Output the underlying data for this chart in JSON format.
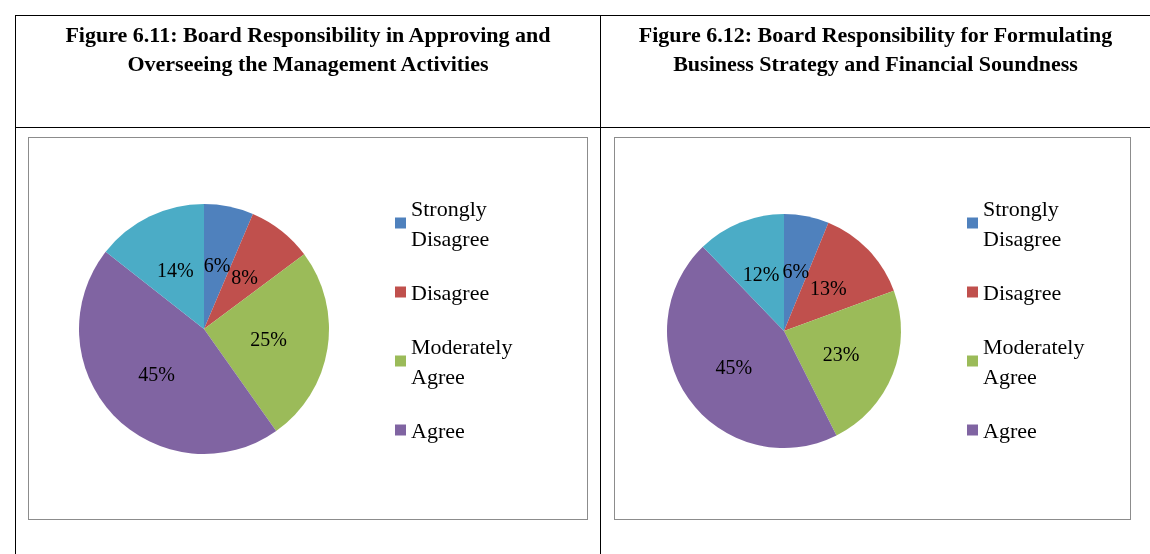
{
  "chart_data": [
    {
      "type": "pie",
      "title": "Figure 6.11: Board Responsibility in Approving and Overseeing the Management Activities",
      "categories": [
        "Strongly Disagree",
        "Disagree",
        "Moderately Agree",
        "Agree",
        null
      ],
      "values": [
        6.4,
        8.4,
        25.4,
        45.4,
        14.4
      ],
      "value_labels": [
        "6%",
        "8%",
        "25%",
        "45%",
        "14%"
      ],
      "colors": [
        "#4f81bd",
        "#c0504d",
        "#9bbb59",
        "#8064a2",
        "#4bacc6"
      ],
      "legend": "right"
    },
    {
      "type": "pie",
      "title": "Figure 6.12: Board Responsibility for Formulating Business Strategy and Financial Soundness",
      "categories": [
        "Strongly Disagree",
        "Disagree",
        "Moderately Agree",
        "Agree",
        null
      ],
      "values": [
        6.2,
        13.2,
        23.2,
        45.2,
        12.2
      ],
      "value_labels": [
        "6%",
        "13%",
        "23%",
        "45%",
        "12%"
      ],
      "colors": [
        "#4f81bd",
        "#c0504d",
        "#9bbb59",
        "#8064a2",
        "#4bacc6"
      ],
      "legend": "right"
    }
  ]
}
